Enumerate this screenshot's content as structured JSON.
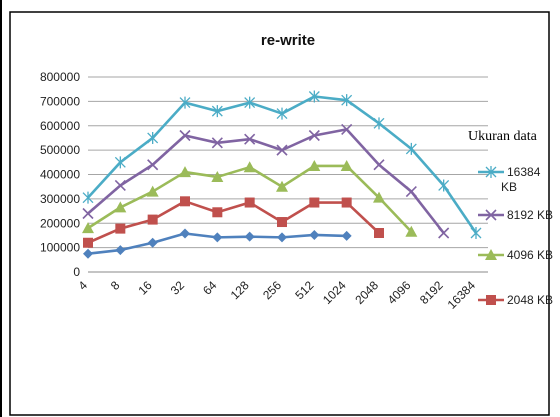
{
  "chart_data": {
    "type": "line",
    "title": "re-write",
    "ylabel": "",
    "xlabel": "",
    "categories": [
      "4",
      "8",
      "16",
      "32",
      "64",
      "128",
      "256",
      "512",
      "1024",
      "2048",
      "4096",
      "8192",
      "16384"
    ],
    "ylim": [
      0,
      800000
    ],
    "yticks": [
      "0",
      "100000",
      "200000",
      "300000",
      "400000",
      "500000",
      "600000",
      "700000",
      "800000"
    ],
    "grid": true,
    "legend_title": "Ukuran data",
    "legend_position": "right",
    "series": [
      {
        "name": "16384 KB",
        "color": "#4bacc6",
        "marker": "star",
        "values": [
          305000,
          450000,
          550000,
          695000,
          660000,
          695000,
          650000,
          720000,
          705000,
          610000,
          505000,
          355000,
          160000
        ]
      },
      {
        "name": "8192 KB",
        "color": "#8064a2",
        "marker": "x",
        "values": [
          240000,
          355000,
          440000,
          560000,
          530000,
          545000,
          500000,
          560000,
          585000,
          440000,
          330000,
          160000,
          null
        ]
      },
      {
        "name": "4096 KB",
        "color": "#9bbb59",
        "marker": "triangle",
        "values": [
          180000,
          265000,
          330000,
          410000,
          390000,
          430000,
          350000,
          435000,
          435000,
          305000,
          165000,
          null,
          null
        ]
      },
      {
        "name": "2048 KB",
        "color": "#c0504d",
        "marker": "square",
        "values": [
          120000,
          178000,
          215000,
          290000,
          245000,
          285000,
          205000,
          285000,
          285000,
          160000,
          null,
          null,
          null
        ]
      },
      {
        "name": "",
        "color": "#4f81bd",
        "marker": "diamond",
        "values": [
          75000,
          90000,
          120000,
          158000,
          142000,
          145000,
          142000,
          152000,
          148000,
          null,
          null,
          null,
          null
        ]
      }
    ]
  }
}
